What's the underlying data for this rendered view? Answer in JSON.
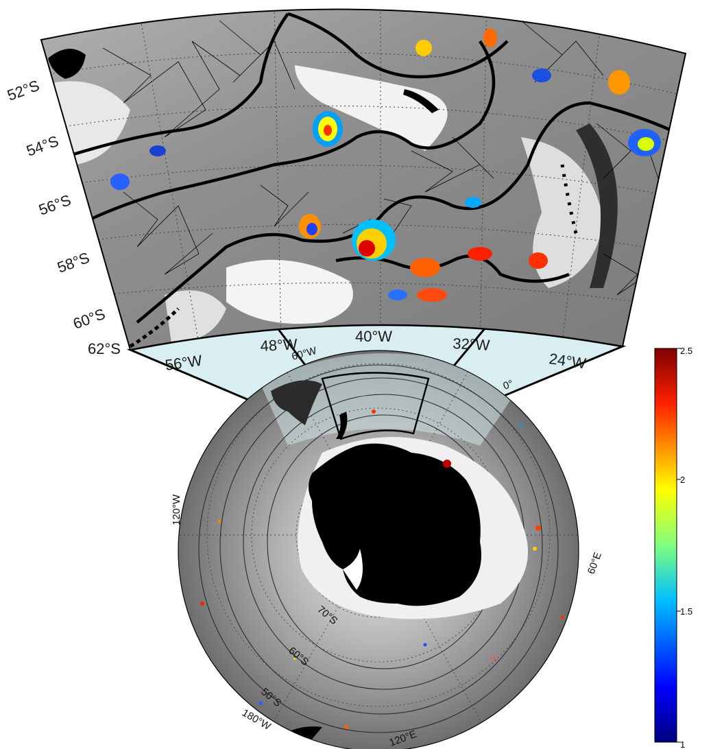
{
  "inset": {
    "lat_labels": [
      "52°S",
      "54°S",
      "56°S",
      "58°S",
      "60°S",
      "62°S"
    ],
    "lon_labels": [
      "56°W",
      "48°W",
      "40°W",
      "32°W",
      "24°W"
    ],
    "lon_range_deg": [
      -60,
      -20
    ],
    "lat_range_deg": [
      -62,
      -50
    ]
  },
  "polar_map": {
    "lon_labels": [
      "60°W",
      "0°",
      "120°W",
      "60°E",
      "180°W",
      "120°E"
    ],
    "lat_labels": [
      "70°S",
      "60°S",
      "50°S"
    ],
    "land_color": "#000000",
    "ocean_colormap": "grayscale"
  },
  "colorbar": {
    "colormap": "jet",
    "range": [
      1,
      2.5
    ],
    "ticks": [
      "2.5",
      "2",
      "1.5",
      "1"
    ]
  },
  "colors": {
    "highlight_wedge": "#d8eef0",
    "frame": "#000000"
  }
}
